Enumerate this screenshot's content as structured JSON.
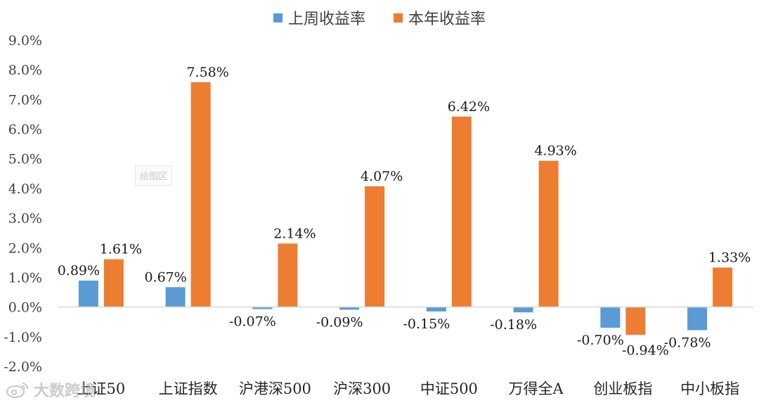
{
  "chart_data": {
    "type": "bar",
    "categories": [
      "上证50",
      "上证指数",
      "沪港深500",
      "沪深300",
      "中证500",
      "万得全A",
      "创业板指",
      "中小板指"
    ],
    "series": [
      {
        "name": "上周收益率",
        "color": "#5B9BD5",
        "values": [
          0.89,
          0.67,
          -0.07,
          -0.09,
          -0.15,
          -0.18,
          -0.7,
          -0.78
        ],
        "labels": [
          "0.89%",
          "0.67%",
          "-0.07%",
          "-0.09%",
          "-0.15%",
          "-0.18%",
          "-0.70%",
          "-0.78%"
        ]
      },
      {
        "name": "本年收益率",
        "color": "#ED7D31",
        "values": [
          1.61,
          7.58,
          2.14,
          4.07,
          6.42,
          4.93,
          -0.94,
          1.33
        ],
        "labels": [
          "1.61%",
          "7.58%",
          "2.14%",
          "4.07%",
          "6.42%",
          "4.93%",
          "-0.94%",
          "1.33%"
        ]
      }
    ],
    "ylim": [
      -2.0,
      9.0
    ],
    "yticks": [
      "9.0%",
      "8.0%",
      "7.0%",
      "6.0%",
      "5.0%",
      "4.0%",
      "3.0%",
      "2.0%",
      "1.0%",
      "0.0%",
      "-1.0%",
      "-2.0%"
    ],
    "grid": false,
    "legend_position": "top"
  },
  "overlay": {
    "plot_area_label": "绘图区"
  },
  "watermark": {
    "text": "大数跨境",
    "icon": "weibo-logo-icon"
  }
}
